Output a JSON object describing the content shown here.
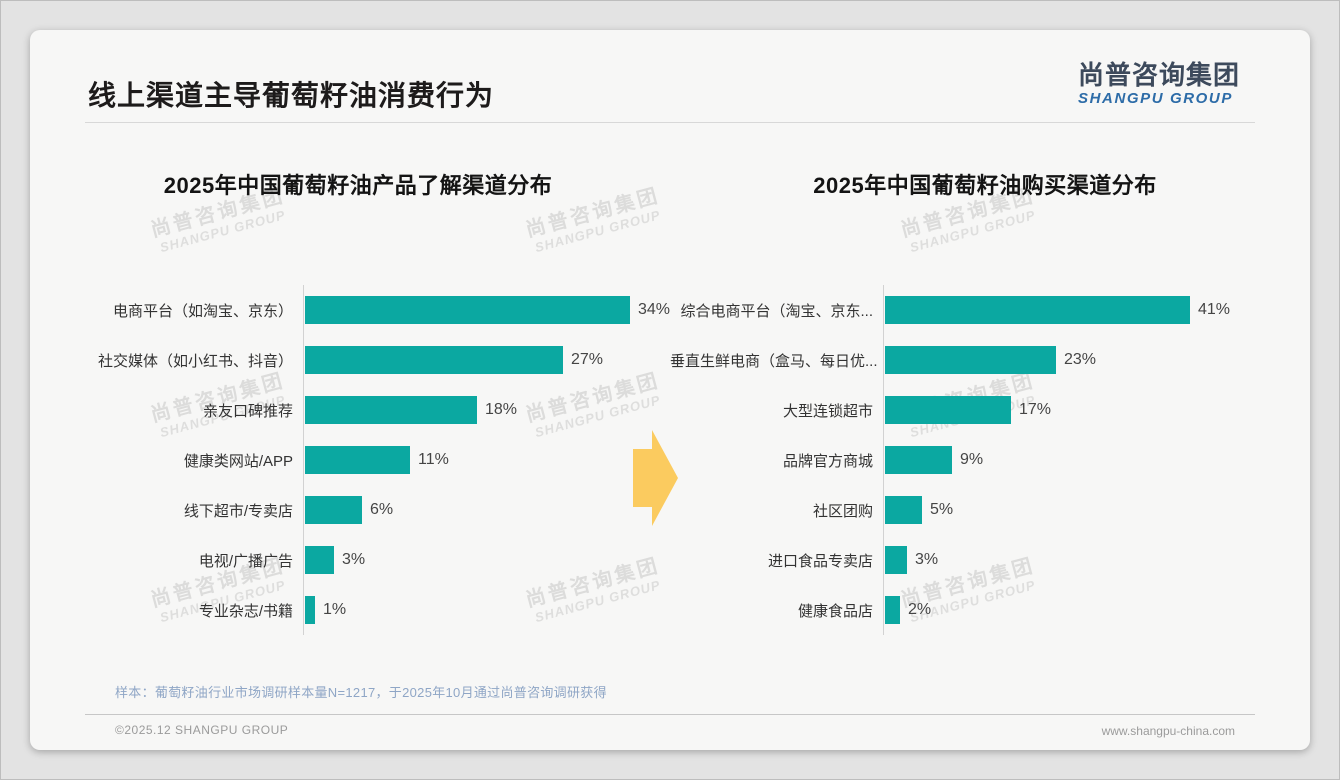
{
  "page": {
    "title": "线上渠道主导葡萄籽油消费行为",
    "logo": {
      "cn": "尚普咨询集团",
      "en": "SHANGPU GROUP"
    },
    "watermark": {
      "cn": "尚普咨询集团",
      "en": "SHANGPU GROUP"
    },
    "sample_note": "样本：葡萄籽油行业市场调研样本量N=1217，于2025年10月通过尚普咨询调研获得",
    "footer_left": "©2025.12 SHANGPU GROUP",
    "footer_right": "www.shangpu-china.com"
  },
  "colors": {
    "bar_teal": "#0ba8a1",
    "arrow_yellow": "#fbcb5f",
    "logo_blue": "#2d6ca8",
    "note_blue_gray": "#8fa6c6"
  },
  "chart_data": [
    {
      "type": "bar",
      "orientation": "horizontal",
      "title": "2025年中国葡萄籽油产品了解渠道分布",
      "unit": "%",
      "categories": [
        "电商平台（如淘宝、京东）",
        "社交媒体（如小红书、抖音）",
        "亲友口碑推荐",
        "健康类网站/APP",
        "线下超市/专卖店",
        "电视/广播广告",
        "专业杂志/书籍"
      ],
      "values": [
        34,
        27,
        18,
        11,
        6,
        3,
        1
      ],
      "xlim": [
        0,
        38
      ],
      "grid": false,
      "legend": "none",
      "value_labels_shown": true
    },
    {
      "type": "bar",
      "orientation": "horizontal",
      "title": "2025年中国葡萄籽油购买渠道分布",
      "unit": "%",
      "categories": [
        "综合电商平台（淘宝、京东...",
        "垂直生鲜电商（盒马、每日优...",
        "大型连锁超市",
        "品牌官方商城",
        "社区团购",
        "进口食品专卖店",
        "健康食品店"
      ],
      "values": [
        41,
        23,
        17,
        9,
        5,
        3,
        2
      ],
      "xlim": [
        0,
        46
      ],
      "grid": false,
      "legend": "none",
      "value_labels_shown": true
    }
  ]
}
